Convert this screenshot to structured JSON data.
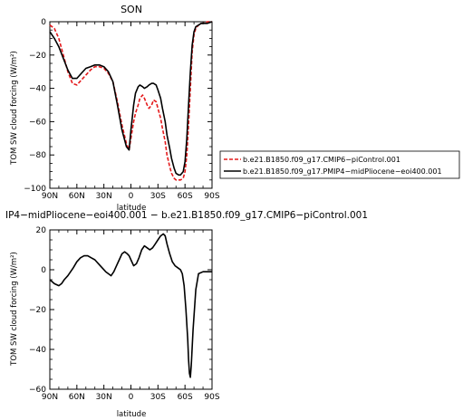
{
  "chart_data": [
    {
      "type": "line",
      "title": "SON",
      "xlabel": "latitude",
      "ylabel": "TOM SW cloud forcing (W/m²)",
      "xlim": [
        90,
        -90
      ],
      "ylim": [
        -100,
        0
      ],
      "x_ticks": [
        90,
        60,
        30,
        0,
        -30,
        -60,
        -90
      ],
      "x_tick_labels": [
        "90N",
        "60N",
        "30N",
        "0",
        "30S",
        "60S",
        "90S"
      ],
      "y_ticks": [
        0,
        -20,
        -40,
        -60,
        -80,
        -100
      ],
      "y_tick_labels": [
        "0",
        "−20",
        "−40",
        "−60",
        "−80",
        "−100"
      ],
      "legend_position": "right",
      "series": [
        {
          "name": "b.e21.B1850.f09_g17.CMIP6−piControl.001",
          "color": "#e41a1c",
          "dash": "dashed",
          "x": [
            90,
            85,
            80,
            75,
            70,
            65,
            60,
            55,
            50,
            45,
            40,
            35,
            30,
            25,
            20,
            15,
            10,
            5,
            2,
            0,
            -3,
            -5,
            -8,
            -10,
            -13,
            -15,
            -18,
            -20,
            -23,
            -25,
            -28,
            -30,
            -33,
            -35,
            -38,
            -40,
            -43,
            -45,
            -48,
            -50,
            -53,
            -55,
            -58,
            -60,
            -62,
            -64,
            -66,
            -68,
            -70,
            -72,
            -75,
            -78,
            -80,
            -85,
            -90
          ],
          "y": [
            -2,
            -4,
            -10,
            -20,
            -30,
            -37,
            -38,
            -35,
            -32,
            -29,
            -27,
            -27,
            -28,
            -31,
            -36,
            -48,
            -62,
            -73,
            -77,
            -70,
            -60,
            -55,
            -50,
            -46,
            -44,
            -46,
            -50,
            -52,
            -50,
            -47,
            -48,
            -52,
            -58,
            -64,
            -72,
            -80,
            -87,
            -91,
            -94,
            -95,
            -95,
            -95,
            -94,
            -90,
            -80,
            -62,
            -40,
            -18,
            -8,
            -4,
            -2,
            -1,
            -1,
            0,
            0
          ]
        },
        {
          "name": "b.e21.B1850.f09_g17.PMIP4−midPliocene−eoi400.001",
          "color": "#000000",
          "dash": "solid",
          "x": [
            90,
            85,
            80,
            75,
            70,
            65,
            60,
            55,
            50,
            45,
            40,
            35,
            30,
            25,
            20,
            15,
            10,
            5,
            2,
            0,
            -3,
            -5,
            -8,
            -10,
            -13,
            -15,
            -18,
            -20,
            -23,
            -25,
            -28,
            -30,
            -33,
            -35,
            -38,
            -40,
            -43,
            -45,
            -48,
            -50,
            -53,
            -55,
            -58,
            -60,
            -62,
            -64,
            -66,
            -68,
            -70,
            -72,
            -75,
            -78,
            -80,
            -85,
            -90
          ],
          "y": [
            -6,
            -10,
            -15,
            -22,
            -29,
            -34,
            -34,
            -31,
            -28,
            -27,
            -26,
            -26,
            -27,
            -30,
            -36,
            -50,
            -65,
            -75,
            -77,
            -65,
            -50,
            -43,
            -39,
            -38,
            -39,
            -40,
            -39,
            -38,
            -37,
            -37,
            -38,
            -41,
            -46,
            -52,
            -60,
            -68,
            -76,
            -82,
            -88,
            -91,
            -92,
            -92,
            -90,
            -84,
            -70,
            -50,
            -30,
            -14,
            -6,
            -3,
            -2,
            -1,
            -1,
            -1,
            0
          ]
        }
      ]
    },
    {
      "type": "line",
      "title": "IP4−midPliocene−eoi400.001 − b.e21.B1850.f09_g17.CMIP6−piControl.001",
      "xlabel": "latitude",
      "ylabel": "TOM SW cloud forcing (W/m²)",
      "xlim": [
        90,
        -90
      ],
      "ylim": [
        -60,
        20
      ],
      "x_ticks": [
        90,
        60,
        30,
        0,
        -30,
        -60,
        -90
      ],
      "x_tick_labels": [
        "90N",
        "60N",
        "30N",
        "0",
        "30S",
        "60S",
        "90S"
      ],
      "y_ticks": [
        20,
        0,
        -20,
        -40,
        -60
      ],
      "y_tick_labels": [
        "20",
        "0",
        "−20",
        "−40",
        "−60"
      ],
      "series": [
        {
          "color": "#000000",
          "dash": "solid",
          "x": [
            90,
            85,
            80,
            77,
            74,
            70,
            67,
            64,
            60,
            56,
            52,
            48,
            44,
            40,
            36,
            32,
            28,
            25,
            22,
            19,
            16,
            13,
            10,
            7,
            4,
            2,
            0,
            -3,
            -6,
            -9,
            -12,
            -15,
            -18,
            -21,
            -24,
            -27,
            -30,
            -33,
            -36,
            -38,
            -40,
            -43,
            -46,
            -49,
            -52,
            -55,
            -57,
            -59,
            -61,
            -63,
            -64,
            -65,
            -66,
            -67,
            -69,
            -72,
            -75,
            -80,
            -85,
            -90
          ],
          "y": [
            -5,
            -7,
            -8,
            -7,
            -5,
            -3,
            -1,
            1,
            4,
            6,
            7,
            7,
            6,
            5,
            3,
            1,
            -1,
            -2,
            -3,
            -1,
            2,
            5,
            8,
            9,
            8,
            7,
            5,
            2,
            3,
            6,
            10,
            12,
            11,
            10,
            11,
            13,
            15,
            17,
            18,
            17,
            13,
            8,
            4,
            2,
            1,
            0,
            -2,
            -8,
            -20,
            -35,
            -45,
            -52,
            -54,
            -48,
            -30,
            -10,
            -2,
            -1,
            -1,
            -1
          ]
        }
      ]
    }
  ]
}
